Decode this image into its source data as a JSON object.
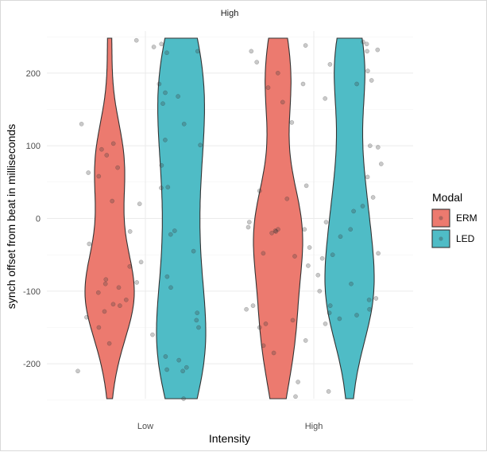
{
  "chart_data": {
    "type": "violin",
    "facet_title": "High",
    "xlabel": "Intensity",
    "ylabel": "synch offset from beat in milliseconds",
    "categories": [
      "Low",
      "High"
    ],
    "ylim": [
      -250,
      250
    ],
    "yticks": [
      -200,
      -100,
      0,
      100,
      200
    ],
    "grid": true,
    "legend": {
      "title": "Modal",
      "position": "right"
    },
    "series": [
      {
        "name": "ERM",
        "color": "#EC7A6F",
        "violins": [
          {
            "category": "Low",
            "points": [
              245,
              130,
              103,
              95,
              87,
              70,
              63,
              58,
              24,
              20,
              -18,
              -35,
              -60,
              -66,
              -84,
              -88,
              -90,
              -95,
              -102,
              -112,
              -118,
              -120,
              -128,
              -136,
              -150,
              -172,
              -210
            ]
          },
          {
            "category": "High",
            "points": [
              238,
              230,
              215,
              200,
              185,
              180,
              160,
              132,
              45,
              38,
              27,
              -5,
              -12,
              -15,
              -17,
              -18,
              -15,
              -20,
              -40,
              -48,
              -52,
              -65,
              -120,
              -125,
              -140,
              -145,
              -150,
              -168,
              -175,
              -185,
              -225,
              -245
            ]
          }
        ]
      },
      {
        "name": "LED",
        "color": "#4FBCC6",
        "violins": [
          {
            "category": "Low",
            "points": [
              240,
              236,
              230,
              228,
              185,
              173,
              168,
              158,
              130,
              108,
              101,
              73,
              43,
              42,
              -17,
              -22,
              -45,
              -80,
              -95,
              -130,
              -140,
              -150,
              -160,
              -190,
              -195,
              -205,
              -208,
              -210,
              -248
            ]
          },
          {
            "category": "High",
            "points": [
              243,
              240,
              232,
              230,
              212,
              203,
              190,
              185,
              165,
              100,
              98,
              75,
              57,
              29,
              17,
              10,
              -5,
              -15,
              -25,
              -48,
              -50,
              -55,
              -78,
              -90,
              -100,
              -110,
              -112,
              -120,
              -125,
              -130,
              -133,
              -138,
              -145,
              -238
            ]
          }
        ]
      }
    ]
  }
}
